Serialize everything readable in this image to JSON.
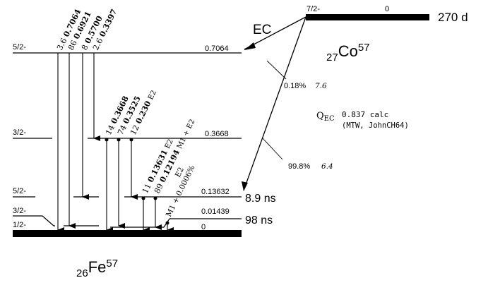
{
  "parent": {
    "spin": "7/2-",
    "energy": "0",
    "half_life": "270 d",
    "Z": "27",
    "element": "Co",
    "A": "57"
  },
  "daughter": {
    "Z": "26",
    "element": "Fe",
    "A": "57"
  },
  "decay_mode": "EC",
  "branches": [
    {
      "percent": "0.18%",
      "logft": "7.6"
    },
    {
      "percent": "99.8%",
      "logft": "6.4"
    }
  ],
  "qec": {
    "label_main": "Q",
    "label_sub": "EC",
    "value": "0.837 calc",
    "ref": "(MTW, JohnCH64)"
  },
  "levels": [
    {
      "spin": "5/2-",
      "energy": "0.7064",
      "half_life": ""
    },
    {
      "spin": "3/2-",
      "energy": "0.3668",
      "half_life": ""
    },
    {
      "spin": "5/2-",
      "energy": "0.13632",
      "half_life": "8.9 ns"
    },
    {
      "spin": "3/2-",
      "energy": "0.01439",
      "half_life": "98 ns"
    },
    {
      "spin": "1/2-",
      "energy": "0",
      "half_life": ""
    }
  ],
  "gammas_from_0706": [
    {
      "intensity": "3.6",
      "energy": "0.7064"
    },
    {
      "intensity": "86",
      "energy": "0.6921"
    },
    {
      "intensity": "8",
      "energy": "0.5700"
    },
    {
      "intensity": "2.6",
      "energy": "0.3397"
    }
  ],
  "gammas_from_0367": [
    {
      "intensity": "14",
      "energy": "0.3668",
      "mult": ""
    },
    {
      "intensity": "74",
      "energy": "0.3525",
      "mult": ""
    },
    {
      "intensity": "12",
      "energy": "0.230",
      "mult": "E2"
    }
  ],
  "gammas_from_0136": [
    {
      "intensity": "11",
      "energy": "0.13631",
      "mult": "E2"
    },
    {
      "intensity": "89",
      "energy": "0.12194",
      "mult": "M1 + E2"
    }
  ],
  "gamma_from_0014": {
    "mult": "M1 + 0.0006%",
    "mult2": "E2"
  }
}
